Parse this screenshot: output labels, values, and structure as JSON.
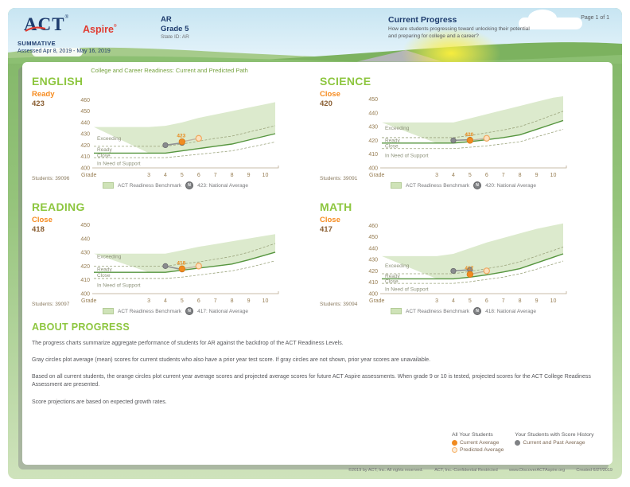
{
  "header": {
    "logo_act": "ACT",
    "logo_reg": "®",
    "logo_aspire": "Aspire",
    "aspire_reg": "®",
    "program": "SUMMATIVE",
    "assessed": "Assessed Apr 8, 2019 - May 16, 2019",
    "org": "AR",
    "grade": "Grade 5",
    "state_id": "State ID: AR",
    "section_title": "Current Progress",
    "section_question": "How are students progressing toward unlocking their potential and preparing for college and a career?",
    "page_number": "Page 1 of 1"
  },
  "chart_section_title": "College and Career Readiness: Current and Predicted Path",
  "charts": [
    {
      "subject": "ENGLISH",
      "level": "Ready",
      "score": "423",
      "students_label": "Students: 39096",
      "legend_benchmark": "ACT Readiness Benchmark",
      "legend_national": "423: National Average",
      "chart_data": {
        "type": "area",
        "xlabel": "Grade",
        "x": [
          3,
          4,
          5,
          6,
          7,
          8,
          9,
          10
        ],
        "ylim": [
          400,
          463
        ],
        "yticks": [
          460,
          450,
          440,
          430,
          420,
          410,
          400
        ],
        "regions": [
          "Exceeding",
          "Ready",
          "Close",
          "In Need of Support"
        ],
        "band_top": [
          436,
          437,
          440,
          444,
          447,
          450,
          453,
          456
        ],
        "benchmark_line": [
          413,
          413,
          415,
          417,
          419,
          421,
          424.5,
          428
        ],
        "ready_boundary_dashed": [
          419,
          419,
          421,
          423.5,
          426,
          428,
          431.5,
          435
        ],
        "support_boundary_dashed": [
          409,
          409,
          410.5,
          412,
          413.5,
          415,
          418,
          421
        ],
        "series": [
          {
            "name": "Current and Past Average",
            "points": [
              [
                4,
                420
              ],
              [
                5,
                422
              ]
            ]
          },
          {
            "name": "Current Average",
            "points": [
              [
                5,
                423
              ]
            ]
          },
          {
            "name": "Predicted Average",
            "points": [
              [
                6,
                426
              ]
            ]
          }
        ],
        "point_label": "423"
      }
    },
    {
      "subject": "SCIENCE",
      "level": "Close",
      "score": "420",
      "students_label": "Students: 39091",
      "legend_benchmark": "ACT Readiness Benchmark",
      "legend_national": "420: National Average",
      "chart_data": {
        "type": "area",
        "xlabel": "Grade",
        "x": [
          3,
          4,
          5,
          6,
          7,
          8,
          9,
          10
        ],
        "ylim": [
          400,
          452
        ],
        "yticks": [
          450,
          440,
          430,
          420,
          410,
          400
        ],
        "regions": [
          "Exceeding",
          "Ready",
          "Close",
          "In Need of Support"
        ],
        "band_top": [
          433,
          433,
          436,
          439,
          442,
          445,
          448,
          451
        ],
        "benchmark_line": [
          418,
          418,
          419,
          420.5,
          422,
          424,
          428,
          432
        ],
        "ready_boundary_dashed": [
          422,
          422,
          423.5,
          425.5,
          427.5,
          430,
          434,
          438.5
        ],
        "support_boundary_dashed": [
          414,
          414,
          415,
          416,
          417.5,
          419,
          422.5,
          426
        ],
        "series": [
          {
            "name": "Current and Past Average",
            "points": [
              [
                4,
                420
              ],
              [
                5,
                420.5
              ]
            ]
          },
          {
            "name": "Current Average",
            "points": [
              [
                5,
                420
              ]
            ]
          },
          {
            "name": "Predicted Average",
            "points": [
              [
                6,
                421.5
              ]
            ]
          }
        ],
        "point_label": "420"
      }
    },
    {
      "subject": "READING",
      "level": "Close",
      "score": "418",
      "students_label": "Students: 39097",
      "legend_benchmark": "ACT Readiness Benchmark",
      "legend_national": "417: National Average",
      "chart_data": {
        "type": "area",
        "xlabel": "Grade",
        "x": [
          3,
          4,
          5,
          6,
          7,
          8,
          9,
          10
        ],
        "ylim": [
          400,
          452
        ],
        "yticks": [
          450,
          440,
          430,
          420,
          410,
          400
        ],
        "regions": [
          "Exceeding",
          "Ready",
          "Close",
          "In Need of Support"
        ],
        "band_top": [
          429,
          429,
          431.5,
          434,
          436,
          438,
          440,
          442
        ],
        "benchmark_line": [
          415.5,
          415.5,
          417,
          418.5,
          420,
          421.5,
          424.5,
          428
        ],
        "ready_boundary_dashed": [
          420,
          420,
          421.5,
          423,
          425,
          427,
          430,
          434
        ],
        "support_boundary_dashed": [
          411,
          411,
          412,
          413.5,
          415,
          416.5,
          419,
          422
        ],
        "series": [
          {
            "name": "Current and Past Average",
            "points": [
              [
                4,
                420
              ],
              [
                5,
                417.5
              ]
            ]
          },
          {
            "name": "Current Average",
            "points": [
              [
                5,
                418
              ]
            ]
          },
          {
            "name": "Predicted Average",
            "points": [
              [
                6,
                420
              ]
            ]
          }
        ],
        "point_label": "418"
      }
    },
    {
      "subject": "MATH",
      "level": "Close",
      "score": "417",
      "students_label": "Students: 39094",
      "legend_benchmark": "ACT Readiness Benchmark",
      "legend_national": "418: National Average",
      "chart_data": {
        "type": "area",
        "xlabel": "Grade",
        "x": [
          3,
          4,
          5,
          6,
          7,
          8,
          9,
          10
        ],
        "ylim": [
          400,
          463
        ],
        "yticks": [
          460,
          450,
          440,
          430,
          420,
          410,
          400
        ],
        "regions": [
          "Exceeding",
          "Ready",
          "Close",
          "In Need of Support"
        ],
        "band_top": [
          433,
          435,
          440,
          445,
          449,
          453,
          457,
          460
        ],
        "benchmark_line": [
          413,
          413,
          414.5,
          416.5,
          419,
          422,
          427,
          432
        ],
        "ready_boundary_dashed": [
          417.5,
          417.5,
          419.5,
          422,
          424.5,
          428,
          433,
          438
        ],
        "support_boundary_dashed": [
          409,
          409,
          410.5,
          412.5,
          414.5,
          417.5,
          421.5,
          426
        ],
        "series": [
          {
            "name": "Current and Past Average",
            "points": [
              [
                4,
                420
              ],
              [
                5,
                421
              ]
            ]
          },
          {
            "name": "Current Average",
            "points": [
              [
                5,
                417
              ]
            ]
          },
          {
            "name": "Predicted Average",
            "points": [
              [
                6,
                420
              ]
            ]
          }
        ],
        "point_label": "417"
      }
    }
  ],
  "about": {
    "title": "ABOUT PROGRESS",
    "paragraphs": [
      "The progress charts summarize aggregate performance of students for AR against the backdrop of the ACT Readiness Levels.",
      "Gray circles plot average (mean) scores for current students who also have a prior year test score. If gray circles are not shown, prior year scores are unavailable.",
      "Based on all current students, the orange circles plot current year average scores and projected average scores for future ACT Aspire assessments. When grade 9 or 10 is tested, projected scores for the ACT College Readiness Assessment are presented.",
      "Score projections are based on expected growth rates."
    ]
  },
  "bottom_legend": {
    "col1_title": "All Your Students",
    "col1_items": [
      {
        "label": "Current Average"
      },
      {
        "label": "Predicted Average"
      }
    ],
    "col2_title": "Your Students with Score History",
    "col2_items": [
      {
        "label": "Current and Past Average"
      }
    ]
  },
  "footer": {
    "items": [
      "©2019 by ACT, Inc. All rights reserved.",
      "ACT, Inc.-Confidential Restricted",
      "www.DiscoverACTAspire.org",
      "Created 6/27/2019"
    ]
  },
  "colors": {
    "brand_navy": "#1e3c6e",
    "brand_red": "#e03c31",
    "title_green": "#8dc63f",
    "level_orange": "#f68b1f",
    "score_brown": "#8a5f33",
    "band_fill": "#dceacd",
    "benchmark_line": "#56953f",
    "gray_point": "#898b8e",
    "predicted_fill": "#fbe0bd"
  }
}
